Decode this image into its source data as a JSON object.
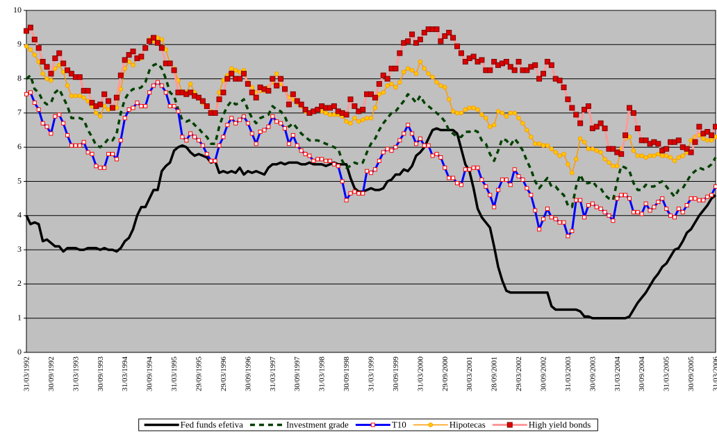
{
  "chart_data": {
    "type": "line",
    "categories": [
      "31/03/1992",
      null,
      null,
      null,
      null,
      null,
      "30/09/1992",
      null,
      null,
      null,
      null,
      null,
      "31/03/1993",
      null,
      null,
      null,
      null,
      null,
      "30/09/1993",
      null,
      null,
      null,
      null,
      null,
      "31/03/1994",
      null,
      null,
      null,
      null,
      null,
      "30/09/1994",
      null,
      null,
      null,
      null,
      null,
      "31/03/1995",
      null,
      null,
      null,
      null,
      null,
      "29/09/1995",
      null,
      null,
      null,
      null,
      null,
      "29/03/1996",
      null,
      null,
      null,
      null,
      null,
      "30/09/1996",
      null,
      null,
      null,
      null,
      null,
      "31/03/1997",
      null,
      null,
      null,
      null,
      null,
      "30/09/1997",
      null,
      null,
      null,
      null,
      null,
      "31/03/1998",
      null,
      null,
      null,
      null,
      null,
      "30/09/1998",
      null,
      null,
      null,
      null,
      null,
      "31/03/1999",
      null,
      null,
      null,
      null,
      null,
      "30/09/1999",
      null,
      null,
      null,
      null,
      null,
      "31/03/2000",
      null,
      null,
      null,
      null,
      null,
      "29/09/2000",
      null,
      null,
      null,
      null,
      null,
      "30/03/2001",
      null,
      null,
      null,
      null,
      null,
      "28/09/2001",
      null,
      null,
      null,
      null,
      null,
      "29/03/2002",
      null,
      null,
      null,
      null,
      null,
      "30/09/2002",
      null,
      null,
      null,
      null,
      null,
      "31/03/2003",
      null,
      null,
      null,
      null,
      null,
      "30/09/2003",
      null,
      null,
      null,
      null,
      null,
      "31/03/2004",
      null,
      null,
      null,
      null,
      null,
      "30/09/2004",
      null,
      null,
      null,
      null,
      null,
      "31/03/2005",
      null,
      null,
      null,
      null,
      null,
      "30/09/2005",
      null,
      null,
      null,
      null,
      null,
      "31/03/2006"
    ],
    "series": [
      {
        "name": "Fed funds efetiva",
        "color": "#000000",
        "width": 3.5,
        "values": [
          4.0,
          3.75,
          3.8,
          3.75,
          3.25,
          3.3,
          3.2,
          3.1,
          3.1,
          2.95,
          3.05,
          3.05,
          3.05,
          3.0,
          3.0,
          3.05,
          3.05,
          3.05,
          3.0,
          3.05,
          3.0,
          3.0,
          2.95,
          3.05,
          3.25,
          3.35,
          3.6,
          4.0,
          4.25,
          4.25,
          4.5,
          4.75,
          4.75,
          5.3,
          5.45,
          5.55,
          5.9,
          6.0,
          6.05,
          6.0,
          5.85,
          5.75,
          5.8,
          5.75,
          5.7,
          5.55,
          5.6,
          5.25,
          5.3,
          5.25,
          5.3,
          5.25,
          5.4,
          5.2,
          5.3,
          5.25,
          5.3,
          5.25,
          5.2,
          5.4,
          5.5,
          5.5,
          5.55,
          5.5,
          5.55,
          5.55,
          5.55,
          5.5,
          5.5,
          5.55,
          5.5,
          5.5,
          5.5,
          5.45,
          5.5,
          5.55,
          5.5,
          5.5,
          5.5,
          5.1,
          4.8,
          4.7,
          4.7,
          4.75,
          4.8,
          4.75,
          4.75,
          4.8,
          5.0,
          5.05,
          5.2,
          5.2,
          5.35,
          5.3,
          5.45,
          5.75,
          5.85,
          6.0,
          6.25,
          6.5,
          6.55,
          6.5,
          6.5,
          6.5,
          6.5,
          6.4,
          5.95,
          5.5,
          5.3,
          4.8,
          4.2,
          3.95,
          3.8,
          3.65,
          3.1,
          2.5,
          2.1,
          1.8,
          1.75,
          1.75,
          1.75,
          1.75,
          1.75,
          1.75,
          1.75,
          1.75,
          1.75,
          1.75,
          1.35,
          1.25,
          1.25,
          1.25,
          1.25,
          1.25,
          1.25,
          1.2,
          1.05,
          1.05,
          1.0,
          1.0,
          1.0,
          1.0,
          1.0,
          1.0,
          1.0,
          1.0,
          1.0,
          1.05,
          1.25,
          1.45,
          1.6,
          1.75,
          1.95,
          2.15,
          2.3,
          2.5,
          2.6,
          2.8,
          3.0,
          3.05,
          3.25,
          3.5,
          3.6,
          3.8,
          4.0,
          4.15,
          4.3,
          4.5,
          4.6
        ]
      },
      {
        "name": "Investment grade",
        "color": "#004000",
        "width": 3.5,
        "line_style": "dashed",
        "values": [
          8.0,
          8.1,
          7.7,
          7.6,
          7.35,
          7.25,
          7.3,
          7.6,
          7.7,
          7.45,
          7.2,
          6.85,
          6.85,
          6.85,
          6.8,
          6.5,
          6.3,
          6.05,
          6.0,
          6.1,
          6.25,
          6.2,
          6.4,
          7.0,
          7.4,
          7.6,
          7.7,
          7.7,
          7.75,
          7.9,
          8.25,
          8.4,
          8.45,
          8.3,
          8.0,
          7.6,
          7.5,
          7.1,
          6.8,
          6.75,
          6.8,
          6.65,
          6.55,
          6.4,
          6.3,
          6.1,
          6.1,
          6.6,
          6.95,
          7.2,
          7.35,
          7.25,
          7.3,
          7.4,
          7.1,
          6.85,
          6.7,
          6.85,
          6.9,
          6.95,
          7.2,
          7.1,
          7.05,
          6.9,
          6.6,
          6.7,
          6.55,
          6.4,
          6.3,
          6.2,
          6.2,
          6.2,
          6.15,
          6.1,
          6.05,
          6.0,
          5.95,
          5.6,
          5.4,
          5.45,
          5.55,
          5.5,
          5.55,
          5.85,
          6.1,
          6.25,
          6.5,
          6.7,
          6.85,
          7.0,
          7.05,
          7.2,
          7.35,
          7.55,
          7.45,
          7.3,
          7.5,
          7.3,
          7.2,
          7.1,
          7.0,
          6.9,
          6.75,
          6.5,
          6.4,
          6.3,
          6.3,
          6.45,
          6.45,
          6.5,
          6.45,
          6.2,
          6.1,
          5.8,
          5.6,
          5.9,
          6.25,
          6.2,
          6.05,
          6.25,
          6.1,
          5.9,
          5.6,
          5.35,
          5.0,
          4.8,
          4.95,
          5.1,
          4.85,
          4.85,
          4.7,
          4.6,
          4.3,
          4.25,
          4.85,
          5.2,
          4.95,
          4.95,
          5.0,
          4.85,
          4.8,
          4.6,
          4.5,
          4.45,
          5.0,
          5.45,
          5.4,
          5.3,
          4.95,
          4.75,
          4.75,
          4.9,
          4.85,
          4.85,
          4.95,
          5.0,
          4.85,
          4.7,
          4.55,
          4.75,
          4.8,
          5.0,
          5.2,
          5.3,
          5.4,
          5.35,
          5.4,
          5.5,
          5.7
        ]
      },
      {
        "name": "T10",
        "color": "#0000ff",
        "width": 3,
        "marker": "square",
        "marker_color": "#ff0000",
        "marker_fill": "#ffffff",
        "values": [
          7.55,
          7.6,
          7.3,
          7.1,
          6.7,
          6.6,
          6.4,
          6.9,
          6.95,
          6.7,
          6.35,
          6.05,
          6.05,
          6.05,
          6.15,
          5.85,
          5.8,
          5.45,
          5.4,
          5.4,
          5.8,
          5.8,
          5.65,
          6.2,
          6.85,
          7.1,
          7.15,
          7.3,
          7.2,
          7.2,
          7.6,
          7.8,
          7.9,
          7.8,
          7.6,
          7.2,
          7.2,
          7.05,
          6.3,
          6.2,
          6.4,
          6.3,
          6.2,
          6.05,
          5.8,
          5.6,
          5.6,
          6.05,
          6.3,
          6.65,
          6.85,
          6.7,
          6.8,
          6.9,
          6.7,
          6.4,
          6.1,
          6.45,
          6.5,
          6.6,
          6.9,
          6.75,
          6.7,
          6.55,
          6.1,
          6.35,
          6.05,
          5.9,
          5.8,
          5.75,
          5.6,
          5.65,
          5.65,
          5.6,
          5.6,
          5.5,
          5.45,
          5.0,
          4.45,
          4.65,
          4.7,
          4.65,
          4.65,
          5.3,
          5.25,
          5.35,
          5.6,
          5.85,
          5.95,
          5.9,
          6.0,
          6.2,
          6.4,
          6.65,
          6.4,
          6.1,
          6.25,
          6.05,
          6.05,
          5.75,
          5.8,
          5.7,
          5.4,
          5.1,
          5.1,
          4.95,
          4.9,
          5.35,
          5.35,
          5.4,
          5.4,
          5.05,
          4.85,
          4.6,
          4.25,
          4.75,
          5.05,
          5.05,
          4.9,
          5.35,
          5.15,
          5.05,
          4.8,
          4.6,
          4.15,
          3.6,
          3.9,
          4.2,
          3.95,
          3.9,
          3.8,
          3.8,
          3.4,
          3.55,
          4.45,
          4.45,
          3.95,
          4.3,
          4.35,
          4.25,
          4.2,
          4.1,
          4.0,
          3.85,
          4.5,
          4.6,
          4.6,
          4.5,
          4.1,
          4.1,
          4.05,
          4.35,
          4.15,
          4.25,
          4.4,
          4.5,
          4.2,
          4.0,
          3.95,
          4.2,
          4.1,
          4.3,
          4.5,
          4.5,
          4.45,
          4.45,
          4.55,
          4.6,
          4.85
        ]
      },
      {
        "name": "Hipotecas",
        "color": "#ff9900",
        "width": 1.5,
        "marker": "circle",
        "marker_color": "#ff9900",
        "marker_fill": "#ffcc00",
        "values": [
          8.95,
          8.85,
          8.7,
          8.5,
          8.15,
          8.0,
          7.95,
          8.3,
          8.4,
          8.2,
          7.8,
          7.5,
          7.5,
          7.5,
          7.45,
          7.35,
          7.2,
          7.0,
          6.9,
          7.2,
          7.1,
          7.15,
          7.15,
          7.7,
          8.3,
          8.5,
          8.4,
          8.6,
          8.6,
          8.9,
          9.15,
          9.1,
          9.2,
          9.15,
          8.85,
          8.45,
          8.3,
          7.95,
          7.6,
          7.6,
          7.85,
          7.6,
          7.45,
          7.3,
          7.2,
          7.05,
          7.0,
          7.6,
          7.95,
          8.1,
          8.3,
          8.25,
          8.2,
          8.25,
          7.9,
          7.75,
          7.6,
          7.65,
          7.65,
          7.75,
          7.9,
          8.15,
          7.85,
          7.7,
          7.45,
          7.4,
          7.3,
          7.2,
          7.05,
          7.0,
          7.05,
          7.1,
          7.05,
          7.0,
          6.95,
          6.95,
          6.95,
          6.9,
          6.75,
          6.7,
          6.85,
          6.75,
          6.8,
          6.85,
          6.85,
          7.15,
          7.55,
          7.6,
          7.8,
          7.85,
          7.75,
          7.9,
          8.2,
          8.3,
          8.25,
          8.15,
          8.5,
          8.3,
          8.15,
          8.05,
          7.9,
          7.8,
          7.75,
          7.4,
          7.05,
          7.0,
          7.0,
          7.1,
          7.15,
          7.15,
          7.1,
          6.95,
          6.85,
          6.6,
          6.65,
          7.05,
          7.0,
          6.9,
          7.0,
          7.0,
          6.85,
          6.7,
          6.5,
          6.3,
          6.1,
          6.1,
          6.05,
          6.05,
          5.95,
          5.85,
          5.75,
          5.8,
          5.5,
          5.25,
          5.65,
          6.25,
          6.15,
          5.95,
          5.95,
          5.9,
          5.85,
          5.65,
          5.55,
          5.45,
          5.45,
          5.95,
          6.25,
          6.3,
          5.9,
          5.75,
          5.75,
          5.7,
          5.75,
          5.75,
          5.8,
          5.75,
          5.75,
          5.7,
          5.6,
          5.7,
          5.75,
          5.85,
          6.2,
          6.3,
          6.35,
          6.25,
          6.2,
          6.2,
          6.3
        ]
      },
      {
        "name": "High yield bonds",
        "color": "#ff9999",
        "width": 3,
        "marker": "square",
        "marker_color": "#800000",
        "marker_fill": "#dd0000",
        "values": [
          9.4,
          9.5,
          9.15,
          8.9,
          8.5,
          8.35,
          8.15,
          8.6,
          8.75,
          8.45,
          8.25,
          8.15,
          8.05,
          8.05,
          7.65,
          7.65,
          7.3,
          7.2,
          7.25,
          7.55,
          7.35,
          7.15,
          7.45,
          8.1,
          8.55,
          8.7,
          8.8,
          8.6,
          8.65,
          8.9,
          9.1,
          9.2,
          9.05,
          8.9,
          8.45,
          8.45,
          8.25,
          7.6,
          7.6,
          7.55,
          7.6,
          7.5,
          7.45,
          7.35,
          7.2,
          7.0,
          7.0,
          7.4,
          7.6,
          8.0,
          8.15,
          8.0,
          8.0,
          8.15,
          7.85,
          7.6,
          7.45,
          7.75,
          7.7,
          7.65,
          8.0,
          7.8,
          8.0,
          7.7,
          7.25,
          7.55,
          7.35,
          7.25,
          7.1,
          7.0,
          7.05,
          7.1,
          7.2,
          7.15,
          7.15,
          7.2,
          7.05,
          7.0,
          6.95,
          7.4,
          7.2,
          7.05,
          7.1,
          7.55,
          7.55,
          7.45,
          7.85,
          8.1,
          8.0,
          8.3,
          8.3,
          8.75,
          9.05,
          9.1,
          9.3,
          9.05,
          9.15,
          9.35,
          9.45,
          9.45,
          9.45,
          9.1,
          9.25,
          9.35,
          9.2,
          8.95,
          8.75,
          8.5,
          8.6,
          8.65,
          8.5,
          8.55,
          8.25,
          8.25,
          8.5,
          8.4,
          8.45,
          8.5,
          8.35,
          8.25,
          8.5,
          8.25,
          8.25,
          8.35,
          8.4,
          8.0,
          8.15,
          8.5,
          8.4,
          8.0,
          7.95,
          7.75,
          7.4,
          7.15,
          6.95,
          6.7,
          7.1,
          7.2,
          6.55,
          6.6,
          6.7,
          6.55,
          5.95,
          5.95,
          5.85,
          5.8,
          6.35,
          7.15,
          7.0,
          6.55,
          6.2,
          6.2,
          6.1,
          6.15,
          6.1,
          5.9,
          5.95,
          6.15,
          6.15,
          6.2,
          6.0,
          5.95,
          5.85,
          6.15,
          6.6,
          6.4,
          6.45,
          6.35,
          6.6
        ]
      }
    ],
    "ylim": [
      0,
      10
    ],
    "yticks": [
      0,
      1,
      2,
      3,
      4,
      5,
      6,
      7,
      8,
      9,
      10
    ],
    "grid": true,
    "plot_background": "#c0c0c0",
    "legend": "bottom"
  }
}
